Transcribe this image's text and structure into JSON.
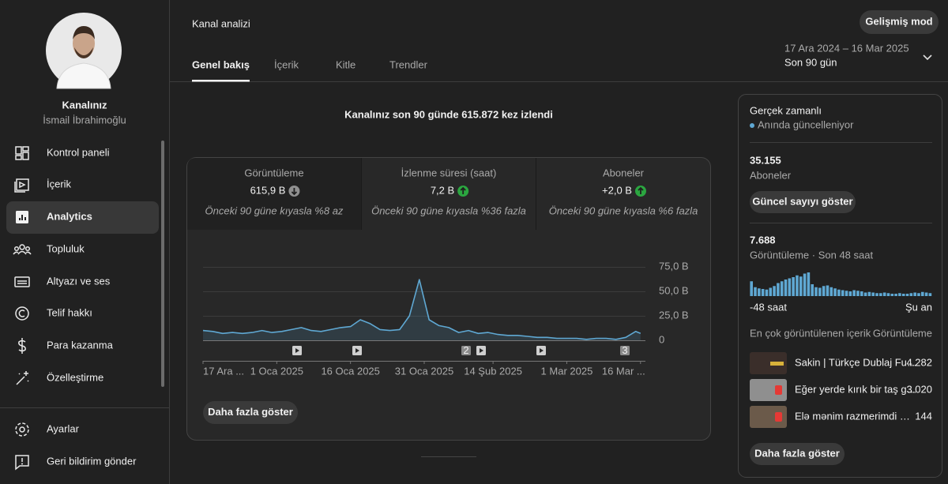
{
  "sidebar": {
    "channel_title": "Kanalınız",
    "channel_owner": "İsmail İbrahimoğlu",
    "nav": [
      {
        "label": "Kontrol paneli"
      },
      {
        "label": "İçerik"
      },
      {
        "label": "Analytics",
        "active": true
      },
      {
        "label": "Topluluk"
      },
      {
        "label": "Altyazı ve ses"
      },
      {
        "label": "Telif hakkı"
      },
      {
        "label": "Para kazanma"
      },
      {
        "label": "Özelleştirme"
      }
    ],
    "footer": [
      {
        "label": "Ayarlar"
      },
      {
        "label": "Geri bildirim gönder"
      }
    ]
  },
  "header": {
    "title": "Kanal analizi",
    "advanced_button": "Gelişmiş mod",
    "tabs": [
      "Genel bakış",
      "İçerik",
      "Kitle",
      "Trendler"
    ],
    "date_range": "17 Ara 2024 – 16 Mar 2025",
    "period": "Son 90 gün"
  },
  "overview": {
    "headline": "Kanalınız son 90 günde 615.872 kez izlendi",
    "metrics": [
      {
        "label": "Görüntüleme",
        "value": "615,9 B",
        "trend": "down",
        "comparison": "Önceki 90 güne kıyasla %8 az"
      },
      {
        "label": "İzlenme süresi (saat)",
        "value": "7,2 B",
        "trend": "up",
        "comparison": "Önceki 90 güne kıyasla %36 fazla"
      },
      {
        "label": "Aboneler",
        "value": "+2,0 B",
        "trend": "up",
        "comparison": "Önceki 90 güne kıyasla %6 fazla"
      }
    ],
    "chart": {
      "type": "line",
      "color": "#5fa8d3",
      "x": [
        0,
        2,
        4,
        6,
        8,
        10,
        12,
        14,
        16,
        18,
        20,
        22,
        24,
        26,
        28,
        30,
        32,
        34,
        36,
        38,
        40,
        42,
        44,
        46,
        48,
        50,
        52,
        54,
        56,
        58,
        60,
        62,
        64,
        66,
        68,
        70,
        72,
        74,
        76,
        78,
        80,
        82,
        84,
        86,
        88,
        89
      ],
      "values": [
        10,
        9,
        7,
        8,
        7,
        8,
        10,
        8,
        9,
        11,
        13,
        10,
        9,
        11,
        13,
        14,
        21,
        17,
        11,
        10,
        11,
        25,
        62,
        21,
        15,
        13,
        8,
        10,
        7,
        8,
        6,
        5,
        5,
        4,
        3,
        3,
        2,
        2,
        2,
        1,
        2,
        2,
        1,
        3,
        9,
        7
      ],
      "xlim": [
        0,
        90
      ],
      "xticks": [
        {
          "value": 0,
          "label": "17 Ara ..."
        },
        {
          "value": 15,
          "label": "1 Oca 2025"
        },
        {
          "value": 30,
          "label": "16 Oca 2025"
        },
        {
          "value": 45,
          "label": "31 Oca 2025"
        },
        {
          "value": 59,
          "label": "14 Şub 2025"
        },
        {
          "value": 74,
          "label": "1 Mar 2025"
        },
        {
          "value": 89,
          "label": "16 Mar ..."
        }
      ],
      "ylim": [
        0,
        75
      ],
      "yticks": [
        0,
        {
          "value": 25,
          "label": "25,0 B"
        },
        {
          "value": 50,
          "label": "50,0 B"
        },
        {
          "value": 75,
          "label": "75,0 B"
        }
      ],
      "grid": true
    },
    "video_marker_counts": [
      "2",
      "3"
    ],
    "more_button": "Daha fazla göster"
  },
  "realtime": {
    "title": "Gerçek zamanlı",
    "status": "Anında güncelleniyor",
    "subscribers": "35.155",
    "subscribers_label": "Aboneler",
    "subscribers_button": "Güncel sayıyı göster",
    "views": "7.688",
    "views_label": "Görüntüleme · Son 48 saat",
    "views_chart": {
      "type": "bar",
      "color": "#5fa8d3",
      "values": [
        250,
        150,
        130,
        120,
        110,
        140,
        170,
        220,
        250,
        280,
        300,
        320,
        350,
        330,
        380,
        400,
        200,
        150,
        140,
        170,
        180,
        150,
        130,
        110,
        100,
        90,
        80,
        100,
        90,
        80,
        60,
        70,
        60,
        50,
        50,
        60,
        50,
        40,
        40,
        50,
        40,
        40,
        50,
        60,
        50,
        70,
        60,
        50
      ],
      "x_start": "-48 saat",
      "x_end": "Şu an"
    },
    "top_content_label": "En çok görüntülenen içerik",
    "top_content_metric": "Görüntüleme",
    "top_content": [
      {
        "title": "Sakin | Türkçe Dublaj Fu…",
        "views": "4.282"
      },
      {
        "title": "Eğer yerde kırık bir taş g…",
        "views": "3.020"
      },
      {
        "title": "Elə mənim razmerimdi …",
        "views": "144"
      }
    ],
    "more_button": "Daha fazla göster"
  }
}
